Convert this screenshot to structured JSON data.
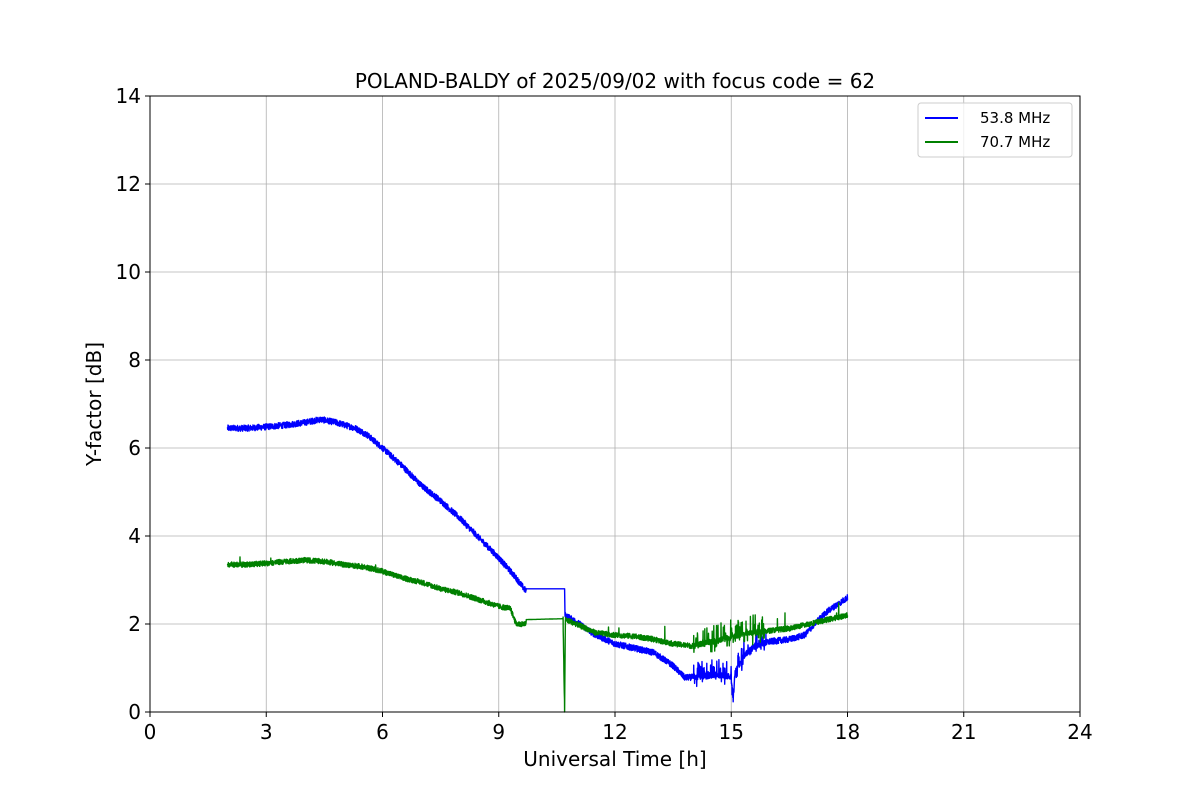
{
  "chart_data": {
    "type": "line",
    "title": "POLAND-BALDY of 2025/09/02 with focus code = 62",
    "xlabel": "Universal Time [h]",
    "ylabel": "Y-factor [dB]",
    "xlim": [
      0,
      24
    ],
    "ylim": [
      0,
      14
    ],
    "xticks": [
      0,
      3,
      6,
      9,
      12,
      15,
      18,
      21,
      24
    ],
    "yticks": [
      0,
      2,
      4,
      6,
      8,
      10,
      12,
      14
    ],
    "grid": true,
    "legend_position": "top-right",
    "series": [
      {
        "name": "53.8 MHz",
        "color": "#0000ff",
        "noise": 0.07,
        "points": [
          [
            2.0,
            6.45
          ],
          [
            2.5,
            6.45
          ],
          [
            3.0,
            6.48
          ],
          [
            3.5,
            6.52
          ],
          [
            4.0,
            6.58
          ],
          [
            4.4,
            6.65
          ],
          [
            4.8,
            6.58
          ],
          [
            5.3,
            6.45
          ],
          [
            5.6,
            6.3
          ],
          [
            6.0,
            6.0
          ],
          [
            6.5,
            5.6
          ],
          [
            7.0,
            5.15
          ],
          [
            7.5,
            4.8
          ],
          [
            8.0,
            4.4
          ],
          [
            8.5,
            3.95
          ],
          [
            9.0,
            3.5
          ],
          [
            9.4,
            3.1
          ],
          [
            9.7,
            2.75
          ],
          [
            9.71,
            2.8
          ],
          [
            10.7,
            2.8
          ],
          [
            10.71,
            2.2
          ],
          [
            11.0,
            2.05
          ],
          [
            11.5,
            1.75
          ],
          [
            12.0,
            1.55
          ],
          [
            12.5,
            1.45
          ],
          [
            13.0,
            1.35
          ],
          [
            13.5,
            1.05
          ],
          [
            13.8,
            0.78
          ],
          [
            14.2,
            0.8
          ],
          [
            14.6,
            0.85
          ],
          [
            15.0,
            0.8
          ],
          [
            15.05,
            0.3
          ],
          [
            15.1,
            0.9
          ],
          [
            15.3,
            1.25
          ],
          [
            15.6,
            1.5
          ],
          [
            16.0,
            1.6
          ],
          [
            16.5,
            1.65
          ],
          [
            16.9,
            1.75
          ],
          [
            17.2,
            2.05
          ],
          [
            17.5,
            2.3
          ],
          [
            18.0,
            2.6
          ]
        ]
      },
      {
        "name": "70.7 MHz",
        "color": "#008000",
        "noise": 0.06,
        "points": [
          [
            2.0,
            3.35
          ],
          [
            2.5,
            3.35
          ],
          [
            3.0,
            3.38
          ],
          [
            3.5,
            3.42
          ],
          [
            4.0,
            3.45
          ],
          [
            4.5,
            3.42
          ],
          [
            5.0,
            3.35
          ],
          [
            5.5,
            3.3
          ],
          [
            6.0,
            3.2
          ],
          [
            6.5,
            3.05
          ],
          [
            7.0,
            2.95
          ],
          [
            7.5,
            2.8
          ],
          [
            8.0,
            2.7
          ],
          [
            8.5,
            2.55
          ],
          [
            9.0,
            2.4
          ],
          [
            9.3,
            2.35
          ],
          [
            9.45,
            2.0
          ],
          [
            9.7,
            2.0
          ],
          [
            9.71,
            2.1
          ],
          [
            10.65,
            2.12
          ],
          [
            10.66,
            2.1
          ],
          [
            10.7,
            0.0
          ],
          [
            10.72,
            2.1
          ],
          [
            11.0,
            2.0
          ],
          [
            11.5,
            1.8
          ],
          [
            12.0,
            1.75
          ],
          [
            12.5,
            1.72
          ],
          [
            13.0,
            1.65
          ],
          [
            13.5,
            1.55
          ],
          [
            14.0,
            1.5
          ],
          [
            14.5,
            1.6
          ],
          [
            15.0,
            1.7
          ],
          [
            15.5,
            1.8
          ],
          [
            16.0,
            1.85
          ],
          [
            16.5,
            1.9
          ],
          [
            17.0,
            2.0
          ],
          [
            17.5,
            2.1
          ],
          [
            18.0,
            2.2
          ]
        ]
      }
    ]
  }
}
